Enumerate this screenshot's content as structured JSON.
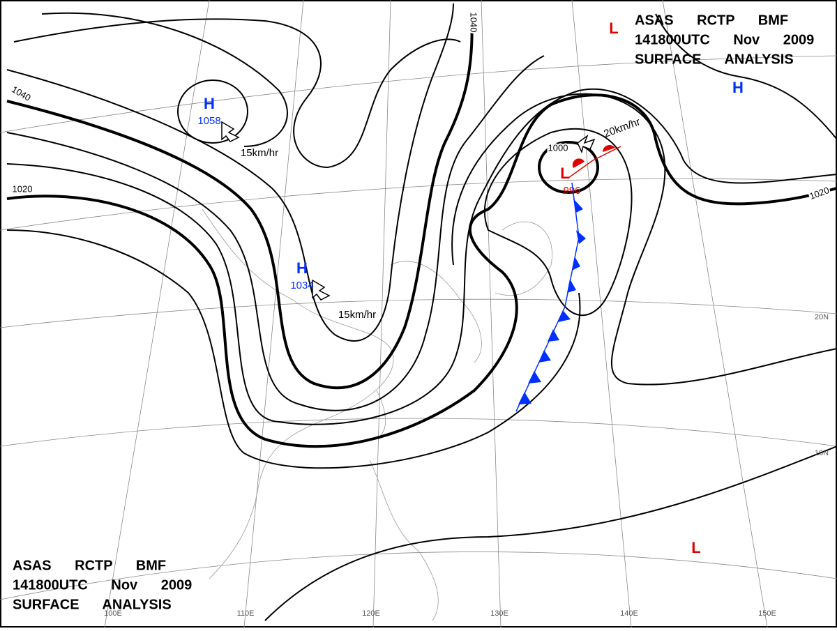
{
  "title_blocks": [
    {
      "lines": [
        "ASAS RCTP BMF",
        "141800UTC Nov 2009",
        "SURFACE ANALYSIS"
      ]
    },
    {
      "lines": [
        "ASAS RCTP BMF",
        "141800UTC Nov 2009",
        "SURFACE ANALYSIS"
      ]
    }
  ],
  "centers": [
    {
      "label": "H",
      "pressure": 1058
    },
    {
      "label": "H",
      "pressure": 1034
    },
    {
      "label": "H"
    },
    {
      "label": "L"
    },
    {
      "label": "L",
      "pressure": 996
    },
    {
      "label": "L"
    }
  ],
  "isobar_labels": [
    1040,
    1040,
    1020,
    1020,
    1000
  ],
  "motions": [
    "15km/hr",
    "15km/hr",
    "20km/hr"
  ],
  "grid_labels": [
    "100E",
    "110E",
    "120E",
    "130E",
    "140E",
    "150E",
    "20N",
    "10N"
  ]
}
